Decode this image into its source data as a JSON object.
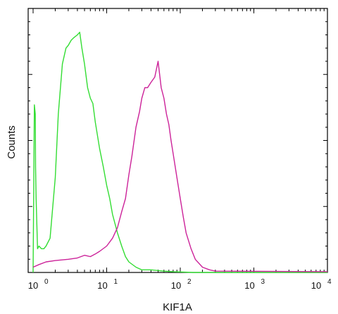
{
  "chart_data": {
    "type": "line",
    "title": "",
    "xlabel": "KIF1A",
    "ylabel": "Counts",
    "x_scale": "log",
    "xlim": [
      1,
      10000
    ],
    "ylim": [
      0,
      100
    ],
    "grid": false,
    "x_ticks": [
      {
        "base": "10",
        "exp": "0",
        "value": 1
      },
      {
        "base": "10",
        "exp": "1",
        "value": 10
      },
      {
        "base": "10",
        "exp": "2",
        "value": 100
      },
      {
        "base": "10",
        "exp": "3",
        "value": 1000
      },
      {
        "base": "10",
        "exp": "4",
        "value": 10000
      }
    ],
    "series": [
      {
        "color": "#33dd33",
        "points": [
          [
            1.0,
            0.0
          ],
          [
            1.04,
            63.5
          ],
          [
            1.07,
            60.0
          ],
          [
            1.08,
            40.0
          ],
          [
            1.1,
            28.0
          ],
          [
            1.15,
            9.0
          ],
          [
            1.2,
            10.0
          ],
          [
            1.25,
            9.5
          ],
          [
            1.3,
            9.0
          ],
          [
            1.4,
            9.0
          ],
          [
            1.5,
            10.0
          ],
          [
            1.7,
            13.0
          ],
          [
            2.0,
            36.0
          ],
          [
            2.2,
            60.0
          ],
          [
            2.5,
            79.0
          ],
          [
            2.8,
            85.0
          ],
          [
            3.0,
            86.0
          ],
          [
            3.3,
            88.0
          ],
          [
            3.6,
            89.0
          ],
          [
            4.0,
            90.0
          ],
          [
            4.3,
            91.0
          ],
          [
            4.6,
            85.0
          ],
          [
            5.0,
            79.0
          ],
          [
            5.5,
            70.0
          ],
          [
            6.0,
            66.0
          ],
          [
            6.5,
            64.0
          ],
          [
            7.0,
            57.0
          ],
          [
            8.0,
            47.0
          ],
          [
            9.0,
            40.0
          ],
          [
            10.0,
            33.0
          ],
          [
            11.0,
            28.0
          ],
          [
            12.0,
            22.0
          ],
          [
            14.0,
            15.0
          ],
          [
            16.0,
            10.0
          ],
          [
            18.0,
            6.0
          ],
          [
            20.0,
            4.0
          ],
          [
            25.0,
            2.0
          ],
          [
            30.0,
            1.0
          ],
          [
            40.0,
            1.0
          ],
          [
            60.0,
            0.5
          ],
          [
            80.0,
            0.3
          ],
          [
            150.0,
            0.0
          ],
          [
            10000.0,
            0.0
          ]
        ]
      },
      {
        "color": "#cc2299",
        "points": [
          [
            1.0,
            2.0
          ],
          [
            1.2,
            3.0
          ],
          [
            1.5,
            4.0
          ],
          [
            2.0,
            4.5
          ],
          [
            3.0,
            5.0
          ],
          [
            4.0,
            5.5
          ],
          [
            5.0,
            6.5
          ],
          [
            6.0,
            6.0
          ],
          [
            7.0,
            7.0
          ],
          [
            8.0,
            8.0
          ],
          [
            10.0,
            10.0
          ],
          [
            12.0,
            13.0
          ],
          [
            14.0,
            17.0
          ],
          [
            16.0,
            23.0
          ],
          [
            18.0,
            28.0
          ],
          [
            20.0,
            37.0
          ],
          [
            22.0,
            44.0
          ],
          [
            25.0,
            55.0
          ],
          [
            28.0,
            61.0
          ],
          [
            30.0,
            66.0
          ],
          [
            33.0,
            70.0
          ],
          [
            36.0,
            70.0
          ],
          [
            40.0,
            72.0
          ],
          [
            45.0,
            74.0
          ],
          [
            50.0,
            80.0
          ],
          [
            55.0,
            70.0
          ],
          [
            60.0,
            66.0
          ],
          [
            65.0,
            60.0
          ],
          [
            70.0,
            56.0
          ],
          [
            75.0,
            50.0
          ],
          [
            80.0,
            45.0
          ],
          [
            90.0,
            36.0
          ],
          [
            100.0,
            28.0
          ],
          [
            110.0,
            21.0
          ],
          [
            120.0,
            15.0
          ],
          [
            140.0,
            9.0
          ],
          [
            160.0,
            5.0
          ],
          [
            200.0,
            2.0
          ],
          [
            250.0,
            1.0
          ],
          [
            300.0,
            0.5
          ],
          [
            10000.0,
            0.3
          ]
        ]
      }
    ]
  }
}
